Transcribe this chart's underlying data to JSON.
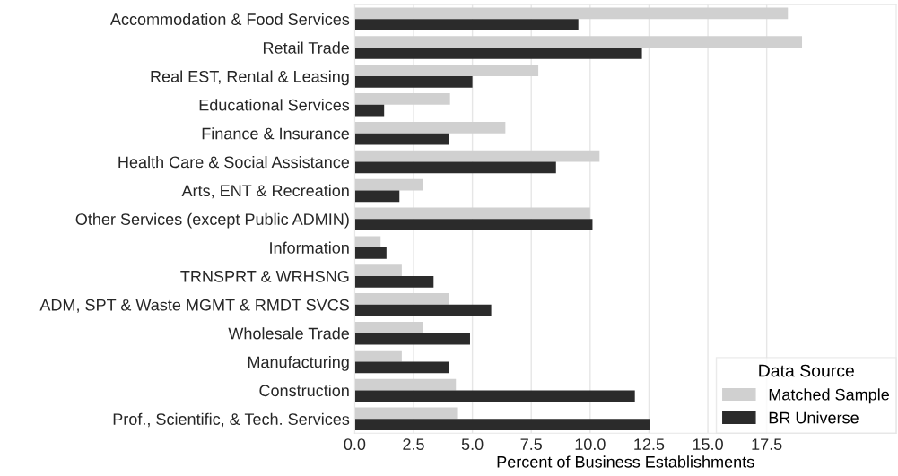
{
  "chart_data": {
    "type": "bar",
    "orientation": "horizontal",
    "xlabel": "Percent of Business Establishments",
    "legend_title": "Data Source",
    "categories": [
      "Accommodation & Food Services",
      "Retail Trade",
      "Real EST, Rental & Leasing",
      "Educational Services",
      "Finance & Insurance",
      "Health Care & Social Assistance",
      "Arts, ENT & Recreation",
      "Other Services (except Public ADMIN)",
      "Information",
      "TRNSPRT & WRHSNG",
      "ADM, SPT & Waste MGMT & RMDT SVCS",
      "Wholesale Trade",
      "Manufacturing",
      "Construction",
      "Prof., Scientific, & Tech. Services"
    ],
    "series": [
      {
        "name": "Matched Sample",
        "color": "#d0d0d0",
        "values": [
          18.4,
          19.0,
          7.8,
          4.05,
          6.4,
          10.4,
          2.9,
          10.0,
          1.1,
          2.0,
          4.0,
          2.9,
          2.0,
          4.3,
          4.35
        ]
      },
      {
        "name": "BR Universe",
        "color": "#2b2b2b",
        "values": [
          9.5,
          12.2,
          5.0,
          1.25,
          4.0,
          8.55,
          1.9,
          10.1,
          1.35,
          3.35,
          5.8,
          4.9,
          4.0,
          11.9,
          12.55
        ]
      }
    ],
    "xlim": [
      0,
      23
    ],
    "xticks": [
      {
        "value": 0,
        "label": "0.0"
      },
      {
        "value": 2.5,
        "label": "2.5"
      },
      {
        "value": 5,
        "label": "5.0"
      },
      {
        "value": 7.5,
        "label": "7.5"
      },
      {
        "value": 10,
        "label": "10.0"
      },
      {
        "value": 12.5,
        "label": "12.5"
      },
      {
        "value": 15,
        "label": "15.0"
      },
      {
        "value": 17.5,
        "label": "17.5"
      }
    ],
    "grid": "x",
    "legend": "bottom right"
  }
}
